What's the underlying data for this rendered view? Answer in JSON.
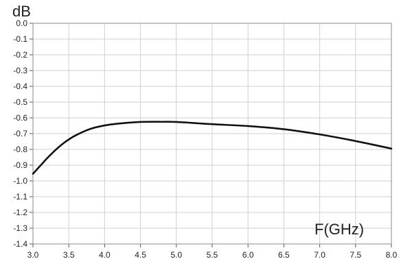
{
  "chart_data": {
    "type": "line",
    "title": "",
    "xlabel": "F(GHz)",
    "ylabel": "dB",
    "xlim": [
      3.0,
      8.0
    ],
    "ylim": [
      -1.4,
      0.0
    ],
    "x_ticks": [
      "3.0",
      "3.5",
      "4.0",
      "4.5",
      "5.0",
      "5.5",
      "6.0",
      "6.5",
      "7.0",
      "7.5",
      "8.0"
    ],
    "y_ticks": [
      "0.0",
      "-0.1",
      "-0.2",
      "-0.3",
      "-0.4",
      "-0.5",
      "-0.6",
      "-0.7",
      "-0.8",
      "-0.9",
      "-1.0",
      "-1.1",
      "-1.2",
      "-1.3",
      "-1.4"
    ],
    "grid": true,
    "series": [
      {
        "x": [
          3.0,
          3.1,
          3.2,
          3.3,
          3.4,
          3.5,
          3.6,
          3.8,
          4.0,
          4.2,
          4.5,
          4.8,
          5.0,
          5.5,
          6.0,
          6.5,
          7.0,
          7.5,
          8.0
        ],
        "y": [
          -0.955,
          -0.905,
          -0.855,
          -0.81,
          -0.77,
          -0.737,
          -0.71,
          -0.67,
          -0.648,
          -0.636,
          -0.626,
          -0.625,
          -0.626,
          -0.64,
          -0.652,
          -0.672,
          -0.705,
          -0.747,
          -0.795
        ],
        "color": "#111111"
      }
    ]
  }
}
